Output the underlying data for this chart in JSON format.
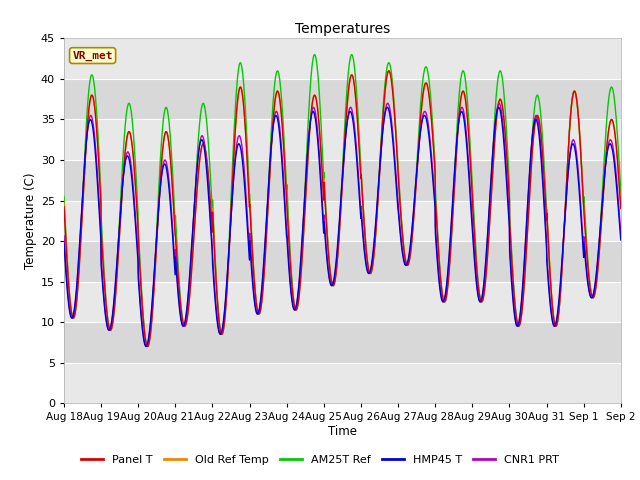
{
  "title": "Temperatures",
  "ylabel": "Temperature (C)",
  "xlabel": "Time",
  "annotation": "VR_met",
  "ylim": [
    0,
    45
  ],
  "yticks": [
    0,
    5,
    10,
    15,
    20,
    25,
    30,
    35,
    40,
    45
  ],
  "n_days": 15,
  "series_colors": {
    "Panel T": "#dd0000",
    "Old Ref Temp": "#ee8800",
    "AM25T Ref": "#00cc00",
    "HMP45 T": "#0000dd",
    "CNR1 PRT": "#bb00bb"
  },
  "x_labels": [
    "Aug 18",
    "Aug 19",
    "Aug 20",
    "Aug 21",
    "Aug 22",
    "Aug 23",
    "Aug 24",
    "Aug 25",
    "Aug 26",
    "Aug 27",
    "Aug 28",
    "Aug 29",
    "Aug 30",
    "Aug 31",
    "Sep 1",
    "Sep 2"
  ],
  "day_mins": [
    10.5,
    9.0,
    7.0,
    9.5,
    8.5,
    11.0,
    11.5,
    14.5,
    16.0,
    17.0,
    12.5,
    12.5,
    9.5,
    9.5,
    13.0
  ],
  "day_maxs_panel": [
    38.0,
    33.5,
    33.5,
    32.0,
    39.0,
    38.5,
    38.0,
    40.5,
    41.0,
    39.5,
    38.5,
    37.5,
    35.5,
    38.5,
    35.0
  ],
  "day_maxs_am25t": [
    40.5,
    37.0,
    36.5,
    37.0,
    42.0,
    41.0,
    43.0,
    43.0,
    42.0,
    41.5,
    41.0,
    41.0,
    38.0,
    38.5,
    39.0
  ],
  "day_maxs_hmp45": [
    35.0,
    30.5,
    29.5,
    32.5,
    32.0,
    35.5,
    36.0,
    36.0,
    36.5,
    35.5,
    36.0,
    36.5,
    35.0,
    32.0,
    32.0
  ],
  "day_maxs_cnr1": [
    35.5,
    31.0,
    30.0,
    33.0,
    33.0,
    36.0,
    36.5,
    36.5,
    37.0,
    36.0,
    36.5,
    37.0,
    35.5,
    32.5,
    32.5
  ],
  "plot_bg_light": "#e8e8e8",
  "plot_bg_dark": "#d8d8d8",
  "fig_bg": "#ffffff",
  "lw": 1.0,
  "points_per_day": 144
}
